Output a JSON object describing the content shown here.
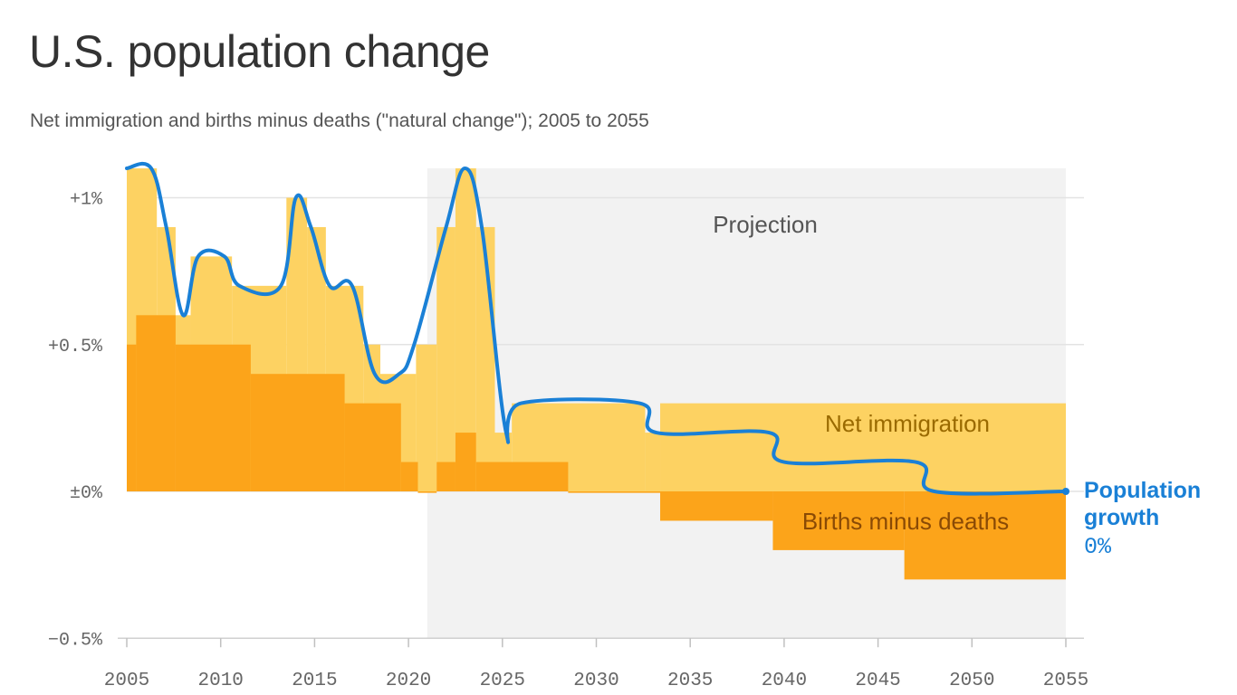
{
  "chart_data": {
    "type": "area",
    "title": "U.S. population change",
    "subtitle": "Net immigration and births minus deaths (\"natural change\"); 2005 to 2055",
    "xlim": [
      2005,
      2055
    ],
    "ylim": [
      -0.5,
      1.1
    ],
    "y_ticks": [
      {
        "value": 1.0,
        "label": "+1%"
      },
      {
        "value": 0.5,
        "label": "+0.5%"
      },
      {
        "value": 0.0,
        "label": "±0%"
      },
      {
        "value": -0.5,
        "label": "−0.5%"
      }
    ],
    "x_ticks": [
      {
        "value": 2005,
        "label": "2005"
      },
      {
        "value": 2010,
        "label": "2010"
      },
      {
        "value": 2015,
        "label": "2015"
      },
      {
        "value": 2020,
        "label": "2020"
      },
      {
        "value": 2025,
        "label": "2025"
      },
      {
        "value": 2030,
        "label": "2030"
      },
      {
        "value": 2035,
        "label": "2035"
      },
      {
        "value": 2040,
        "label": "2040"
      },
      {
        "value": 2045,
        "label": "2045"
      },
      {
        "value": 2050,
        "label": "2050"
      },
      {
        "value": 2055,
        "label": "2055"
      }
    ],
    "projection": {
      "start": 2021,
      "end": 2055,
      "label": "Projection"
    },
    "colors": {
      "net_immigration": "#fdd262",
      "natural_change": "#fca41a",
      "population_growth": "#1a80d6",
      "projection": "#f2f2f2",
      "grid": "#e3e3e3"
    },
    "series": [
      {
        "name": "Natural change",
        "label": "Births minus deaths",
        "steps": [
          {
            "x0": 2005,
            "x1": 2005.5,
            "y": 0.5
          },
          {
            "x0": 2005.5,
            "x1": 2007.6,
            "y": 0.6
          },
          {
            "x0": 2007.6,
            "x1": 2011.6,
            "y": 0.5
          },
          {
            "x0": 2011.6,
            "x1": 2016.6,
            "y": 0.4
          },
          {
            "x0": 2016.6,
            "x1": 2019.6,
            "y": 0.3
          },
          {
            "x0": 2019.6,
            "x1": 2020.5,
            "y": 0.1
          },
          {
            "x0": 2020.5,
            "x1": 2021.5,
            "y": -0.005
          },
          {
            "x0": 2021.5,
            "x1": 2022.5,
            "y": 0.1
          },
          {
            "x0": 2022.5,
            "x1": 2023.6,
            "y": 0.2
          },
          {
            "x0": 2023.6,
            "x1": 2028.5,
            "y": 0.1
          },
          {
            "x0": 2028.5,
            "x1": 2033.4,
            "y": -0.005
          },
          {
            "x0": 2033.4,
            "x1": 2039.4,
            "y": -0.1
          },
          {
            "x0": 2039.4,
            "x1": 2046.4,
            "y": -0.2
          },
          {
            "x0": 2046.4,
            "x1": 2055,
            "y": -0.3
          }
        ]
      },
      {
        "name": "Net immigration",
        "label": "Net immigration",
        "steps": [
          {
            "x0": 2005,
            "x1": 2006.6,
            "y": 1.1
          },
          {
            "x0": 2006.6,
            "x1": 2007.6,
            "y": 0.9
          },
          {
            "x0": 2007.6,
            "x1": 2008.4,
            "y": 0.6
          },
          {
            "x0": 2008.4,
            "x1": 2010.6,
            "y": 0.8
          },
          {
            "x0": 2010.6,
            "x1": 2013.5,
            "y": 0.7
          },
          {
            "x0": 2013.5,
            "x1": 2014.6,
            "y": 1.0
          },
          {
            "x0": 2014.6,
            "x1": 2015.6,
            "y": 0.9
          },
          {
            "x0": 2015.6,
            "x1": 2017.6,
            "y": 0.7
          },
          {
            "x0": 2017.6,
            "x1": 2018.5,
            "y": 0.5
          },
          {
            "x0": 2018.5,
            "x1": 2020.4,
            "y": 0.4
          },
          {
            "x0": 2020.4,
            "x1": 2021.5,
            "y": 0.5
          },
          {
            "x0": 2021.5,
            "x1": 2022.5,
            "y": 0.9
          },
          {
            "x0": 2022.5,
            "x1": 2023.6,
            "y": 1.1
          },
          {
            "x0": 2023.6,
            "x1": 2024.6,
            "y": 0.9
          },
          {
            "x0": 2024.6,
            "x1": 2025.5,
            "y": 0.2
          },
          {
            "x0": 2025.5,
            "x1": 2032.6,
            "y": 0.3
          },
          {
            "x0": 2032.6,
            "x1": 2033.4,
            "y": 0.2
          },
          {
            "x0": 2033.4,
            "x1": 2055,
            "y": 0.3
          }
        ]
      },
      {
        "name": "Population growth",
        "label": "Population growth",
        "end_label": "0%",
        "points": [
          [
            2005,
            1.1
          ],
          [
            2006.3,
            1.1
          ],
          [
            2007.1,
            0.9
          ],
          [
            2008.0,
            0.6
          ],
          [
            2008.8,
            0.8
          ],
          [
            2010.2,
            0.8
          ],
          [
            2011.0,
            0.7
          ],
          [
            2013.2,
            0.7
          ],
          [
            2014.0,
            1.0
          ],
          [
            2014.8,
            0.9
          ],
          [
            2015.8,
            0.7
          ],
          [
            2017.0,
            0.7
          ],
          [
            2018.2,
            0.4
          ],
          [
            2019.5,
            0.4
          ],
          [
            2020.3,
            0.5
          ],
          [
            2022.0,
            0.9
          ],
          [
            2023.0,
            1.1
          ],
          [
            2023.9,
            0.9
          ],
          [
            2025.2,
            0.2
          ],
          [
            2026.0,
            0.3
          ],
          [
            2032.3,
            0.3
          ],
          [
            2033.2,
            0.2
          ],
          [
            2039.2,
            0.2
          ],
          [
            2040.0,
            0.1
          ],
          [
            2047.0,
            0.1
          ],
          [
            2048.0,
            0.0
          ],
          [
            2055,
            0.0
          ]
        ]
      }
    ]
  }
}
